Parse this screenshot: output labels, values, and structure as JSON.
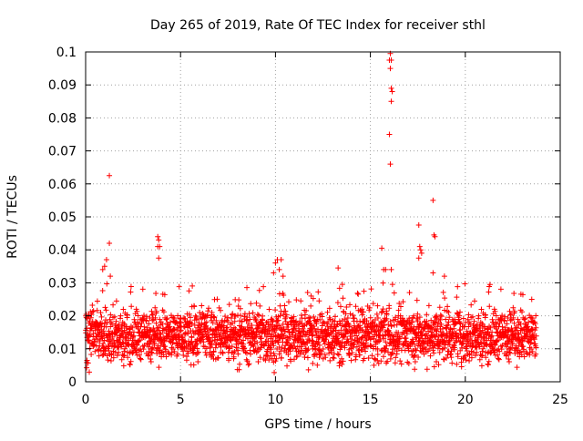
{
  "chart_data": {
    "type": "scatter",
    "title": "Day 265 of 2019, Rate Of TEC Index for receiver sthl",
    "xlabel": "GPS time / hours",
    "ylabel": "ROTI / TECUs",
    "xlim": [
      0,
      25
    ],
    "ylim": [
      0,
      0.1
    ],
    "xticks": [
      0,
      5,
      10,
      15,
      20,
      25
    ],
    "xtick_labels": [
      "0",
      "5",
      "10",
      "15",
      "20",
      "25"
    ],
    "yticks": [
      0,
      0.01,
      0.02,
      0.03,
      0.04,
      0.05,
      0.06,
      0.07,
      0.08,
      0.09,
      0.1
    ],
    "ytick_labels": [
      "0",
      "0.01",
      "0.02",
      "0.03",
      "0.04",
      "0.05",
      "0.06",
      "0.07",
      "0.08",
      "0.09",
      "0.1"
    ],
    "grid": true,
    "marker": "+",
    "color": "#ff0000",
    "series": [
      {
        "name": "ROTI",
        "points": [
          [
            1.25,
            0.0625
          ],
          [
            1.25,
            0.042
          ],
          [
            1.1,
            0.037
          ],
          [
            1.0,
            0.035
          ],
          [
            1.3,
            0.032
          ],
          [
            0.9,
            0.034
          ],
          [
            3.8,
            0.044
          ],
          [
            3.85,
            0.043
          ],
          [
            3.8,
            0.041
          ],
          [
            3.9,
            0.041
          ],
          [
            3.85,
            0.0375
          ],
          [
            10.1,
            0.037
          ],
          [
            10.3,
            0.037
          ],
          [
            10.0,
            0.036
          ],
          [
            10.2,
            0.034
          ],
          [
            9.9,
            0.033
          ],
          [
            10.4,
            0.032
          ],
          [
            13.3,
            0.0345
          ],
          [
            15.6,
            0.0405
          ],
          [
            15.7,
            0.034
          ],
          [
            15.8,
            0.034
          ],
          [
            16.05,
            0.0995
          ],
          [
            16.1,
            0.0975
          ],
          [
            16.0,
            0.0975
          ],
          [
            16.05,
            0.095
          ],
          [
            16.1,
            0.089
          ],
          [
            16.15,
            0.088
          ],
          [
            16.1,
            0.085
          ],
          [
            16.0,
            0.075
          ],
          [
            16.05,
            0.066
          ],
          [
            16.1,
            0.034
          ],
          [
            17.55,
            0.0475
          ],
          [
            17.6,
            0.041
          ],
          [
            17.65,
            0.04
          ],
          [
            17.7,
            0.039
          ],
          [
            17.55,
            0.0375
          ],
          [
            18.3,
            0.055
          ],
          [
            18.35,
            0.0445
          ],
          [
            18.4,
            0.044
          ],
          [
            18.3,
            0.033
          ],
          [
            18.9,
            0.032
          ],
          [
            21.3,
            0.0295
          ],
          [
            23.5,
            0.025
          ]
        ],
        "baseline_band": {
          "x_start": 0,
          "x_end": 23.75,
          "typical_min": 0.002,
          "typical_max": 0.03,
          "typical_center": 0.012
        }
      }
    ]
  }
}
